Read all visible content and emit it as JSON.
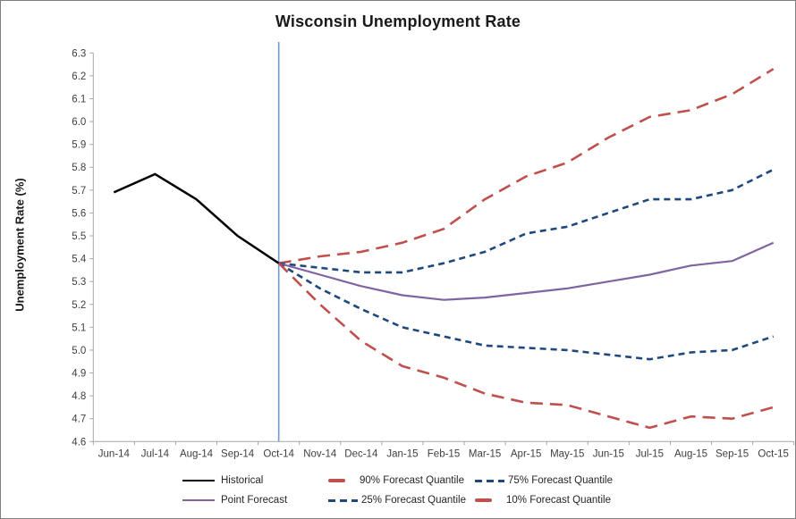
{
  "title": "Wisconsin Unemployment Rate",
  "colors": {
    "historical": "#000000",
    "point_forecast": "#8064A2",
    "red_quantile": "#C0504D",
    "blue_quantile": "#1F497D",
    "forecast_divider": "#6C9BD5",
    "axis": "#A6A6A6",
    "tick_text": "#404040",
    "title_text": "#1A1A1A"
  },
  "legend": {
    "items": [
      {
        "label": "Historical"
      },
      {
        "label": "90% Forecast Quantile"
      },
      {
        "label": "75% Forecast Quantile"
      },
      {
        "label": "Point Forecast"
      },
      {
        "label": "25% Forecast Quantile"
      },
      {
        "label": "10% Forecast Quantile"
      }
    ]
  },
  "chart_data": {
    "type": "line",
    "title": "Wisconsin Unemployment Rate",
    "xlabel": "",
    "ylabel": "Unemployment Rate (%)",
    "ylim": [
      4.6,
      6.3
    ],
    "y_tick_step": 0.1,
    "grid": false,
    "legend_position": "bottom",
    "categories": [
      "Jun-14",
      "Jul-14",
      "Aug-14",
      "Sep-14",
      "Oct-14",
      "Nov-14",
      "Dec-14",
      "Jan-15",
      "Feb-15",
      "Mar-15",
      "Apr-15",
      "May-15",
      "Jun-15",
      "Jul-15",
      "Aug-15",
      "Sep-15",
      "Oct-15"
    ],
    "annotation_line": {
      "x_category": "Oct-14",
      "color": "#6C9BD5",
      "meaning": "forecast start"
    },
    "series": [
      {
        "name": "Historical",
        "color": "#000000",
        "style": "solid",
        "width": 2.5,
        "values": [
          5.69,
          5.77,
          5.66,
          5.5,
          5.38,
          null,
          null,
          null,
          null,
          null,
          null,
          null,
          null,
          null,
          null,
          null,
          null
        ]
      },
      {
        "name": "90% Forecast Quantile",
        "color": "#C0504D",
        "style": "long-dash",
        "width": 2.6,
        "values": [
          null,
          null,
          null,
          null,
          5.38,
          5.41,
          5.43,
          5.47,
          5.53,
          5.66,
          5.76,
          5.82,
          5.93,
          6.02,
          6.05,
          6.12,
          6.23
        ]
      },
      {
        "name": "75% Forecast Quantile",
        "color": "#1F497D",
        "style": "dash",
        "width": 2.6,
        "values": [
          null,
          null,
          null,
          null,
          5.38,
          5.36,
          5.34,
          5.34,
          5.38,
          5.43,
          5.51,
          5.54,
          5.6,
          5.66,
          5.66,
          5.7,
          5.79
        ]
      },
      {
        "name": "Point Forecast",
        "color": "#8064A2",
        "style": "solid",
        "width": 2.2,
        "values": [
          null,
          null,
          null,
          null,
          5.38,
          5.33,
          5.28,
          5.24,
          5.22,
          5.23,
          5.25,
          5.27,
          5.3,
          5.33,
          5.37,
          5.39,
          5.47
        ]
      },
      {
        "name": "25% Forecast Quantile",
        "color": "#1F497D",
        "style": "dash",
        "width": 2.6,
        "values": [
          null,
          null,
          null,
          null,
          5.38,
          5.27,
          5.18,
          5.1,
          5.06,
          5.02,
          5.01,
          5.0,
          4.98,
          4.96,
          4.99,
          5.0,
          5.06
        ]
      },
      {
        "name": "10% Forecast Quantile",
        "color": "#C0504D",
        "style": "long-dash",
        "width": 2.6,
        "values": [
          null,
          null,
          null,
          null,
          5.38,
          5.2,
          5.04,
          4.93,
          4.88,
          4.81,
          4.77,
          4.76,
          4.71,
          4.66,
          4.71,
          4.7,
          4.75
        ]
      }
    ]
  }
}
